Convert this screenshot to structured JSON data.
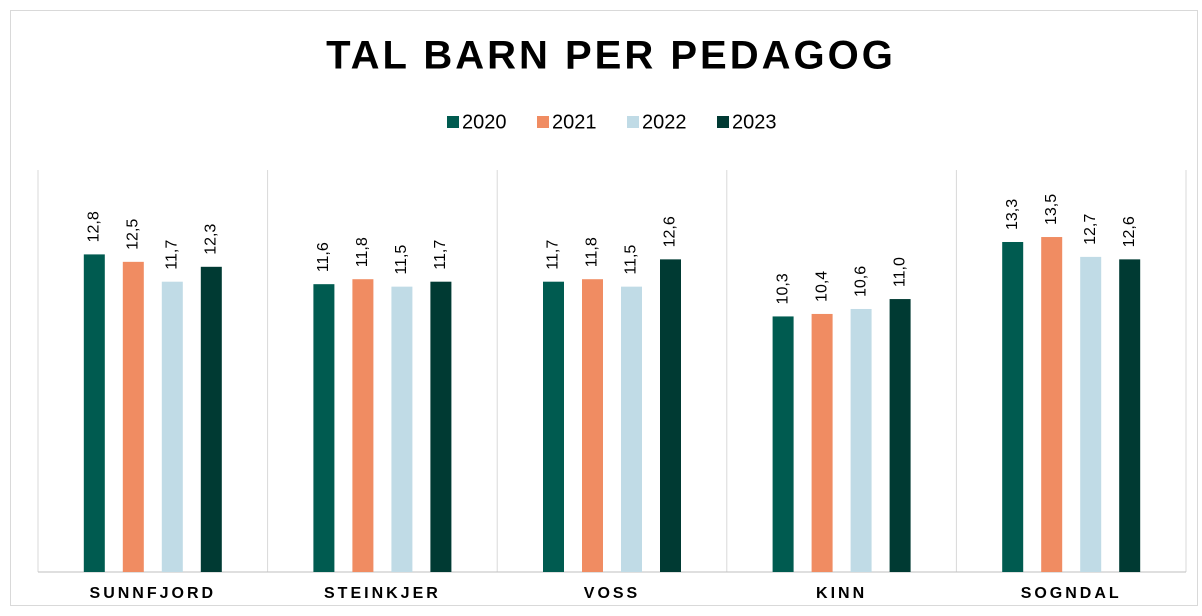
{
  "chart_data": {
    "type": "bar",
    "title": "TAL BARN PER PEDAGOG",
    "categories": [
      "SUNNFJORD",
      "STEINKJER",
      "VOSS",
      "KINN",
      "SOGNDAL"
    ],
    "series": [
      {
        "name": "2020",
        "color": "#005b50",
        "values": [
          12.8,
          11.6,
          11.7,
          10.3,
          13.3
        ],
        "value_labels": [
          "12,8",
          "11,6",
          "11,7",
          "10,3",
          "13,3"
        ]
      },
      {
        "name": "2021",
        "color": "#f08c62",
        "values": [
          12.5,
          11.8,
          11.8,
          10.4,
          13.5
        ],
        "value_labels": [
          "12,5",
          "11,8",
          "11,8",
          "10,4",
          "13,5"
        ]
      },
      {
        "name": "2022",
        "color": "#c0dbe6",
        "values": [
          11.7,
          11.5,
          11.5,
          10.6,
          12.7
        ],
        "value_labels": [
          "11,7",
          "11,5",
          "11,5",
          "10,6",
          "12,7"
        ]
      },
      {
        "name": "2023",
        "color": "#003a33",
        "values": [
          12.3,
          11.7,
          12.6,
          11.0,
          12.6
        ],
        "value_labels": [
          "12,3",
          "11,7",
          "12,6",
          "11,0",
          "12,6"
        ]
      }
    ],
    "ylim": [
      0,
      16
    ],
    "legend": "top"
  }
}
